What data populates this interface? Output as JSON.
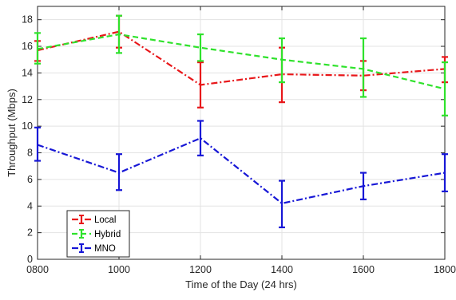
{
  "chart_data": {
    "type": "line",
    "title": "",
    "xlabel": "Time of the Day (24 hrs)",
    "ylabel": "Throughput (Mbps)",
    "x": [
      800,
      1000,
      1200,
      1400,
      1600,
      1800
    ],
    "x_tick_labels": [
      "0800",
      "1000",
      "1200",
      "1400",
      "1600",
      "1800"
    ],
    "xlim": [
      800,
      1800
    ],
    "ylim": [
      0,
      19
    ],
    "y_ticks": [
      0,
      2,
      4,
      6,
      8,
      10,
      12,
      14,
      16,
      18
    ],
    "grid": true,
    "legend_position": "bottom-left",
    "error_bars": true,
    "series": [
      {
        "name": "Local",
        "color": "#e8171a",
        "line_style": "dash-dot",
        "values": [
          15.7,
          17.1,
          13.1,
          13.9,
          13.8,
          14.3
        ],
        "err_low": [
          14.9,
          15.9,
          11.4,
          11.8,
          12.7,
          13.3
        ],
        "err_high": [
          16.4,
          18.3,
          14.8,
          15.9,
          14.9,
          15.2
        ]
      },
      {
        "name": "Hybrid",
        "color": "#2fe22c",
        "line_style": "dashed",
        "values": [
          15.8,
          16.9,
          15.9,
          15.0,
          14.3,
          12.8
        ],
        "err_low": [
          14.7,
          15.5,
          14.9,
          13.3,
          12.2,
          10.8
        ],
        "err_high": [
          17.0,
          18.3,
          16.9,
          16.6,
          16.6,
          14.8
        ]
      },
      {
        "name": "MNO",
        "color": "#1717d6",
        "line_style": "dash-dot",
        "values": [
          8.6,
          6.5,
          9.1,
          4.2,
          5.5,
          6.5
        ],
        "err_low": [
          7.4,
          5.2,
          7.8,
          2.4,
          4.5,
          5.1
        ],
        "err_high": [
          9.9,
          7.9,
          10.4,
          5.9,
          6.5,
          7.9
        ]
      }
    ]
  }
}
